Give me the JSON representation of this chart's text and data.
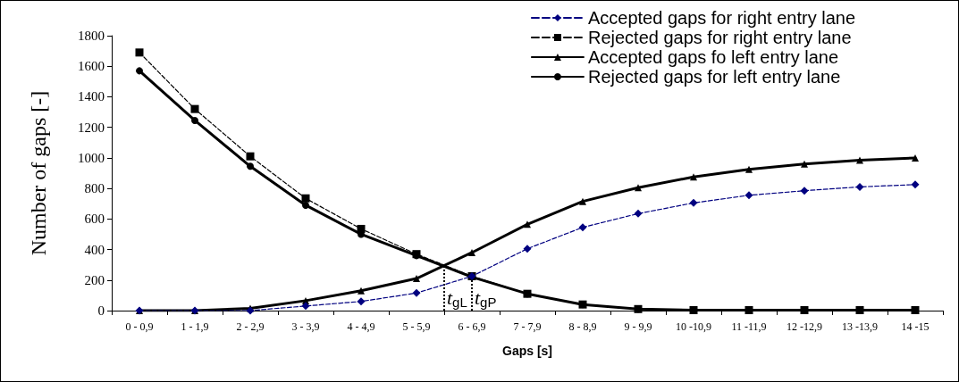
{
  "chart_data": {
    "type": "line",
    "xlabel": "Gaps [s]",
    "ylabel": "Number of gaps [-]",
    "categories": [
      "0 - 0,9",
      "1 - 1,9",
      "2 - 2,9",
      "3 - 3,9",
      "4 - 4,9",
      "5 - 5,9",
      "6 - 6,9",
      "7 - 7,9",
      "8 - 8,9",
      "9 - 9,9",
      "10 -10,9",
      "11 -11,9",
      "12 -12,9",
      "13 -13,9",
      "14 -15"
    ],
    "series": [
      {
        "name": "Accepted gaps for right entry lane",
        "color": "#000080",
        "marker": "diamond",
        "line_style": "dashed",
        "values": [
          0,
          0,
          0,
          30,
          60,
          115,
          225,
          405,
          545,
          635,
          705,
          755,
          785,
          810,
          825
        ]
      },
      {
        "name": "Rejected gaps for right entry lane",
        "color": "#000000",
        "marker": "square",
        "line_style": "dashed",
        "values": [
          1690,
          1320,
          1010,
          735,
          535,
          370,
          225,
          110,
          40,
          10,
          3,
          3,
          3,
          3,
          3
        ]
      },
      {
        "name": "Accepted gaps fo left entry lane",
        "color": "#000000",
        "marker": "triangle",
        "line_style": "solid",
        "values": [
          0,
          0,
          15,
          65,
          130,
          210,
          380,
          565,
          715,
          805,
          875,
          925,
          960,
          985,
          1000
        ]
      },
      {
        "name": "Rejected gaps for left entry lane",
        "color": "#000000",
        "marker": "circle",
        "line_style": "solid",
        "values": [
          1570,
          1245,
          945,
          690,
          500,
          360,
          220,
          110,
          40,
          10,
          3,
          3,
          3,
          3,
          3
        ]
      }
    ],
    "annotations": [
      {
        "text": "t$_{gL}$",
        "y": 290
      },
      {
        "text": "t$_{gP}$",
        "x": "6 - 6,9",
        "y": 225
      }
    ],
    "ylim": [
      0,
      1800
    ],
    "yticks": [
      0,
      200,
      400,
      600,
      800,
      1000,
      1200,
      1400,
      1600,
      1800
    ],
    "grid": false,
    "legend": "top right"
  }
}
